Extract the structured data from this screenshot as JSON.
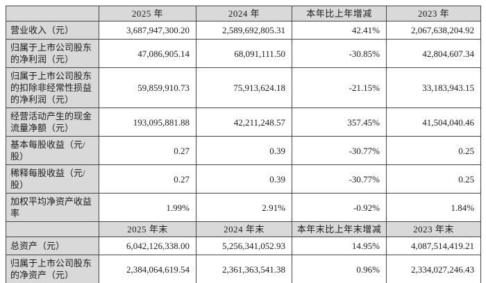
{
  "colors": {
    "header_bg": "#d9d9d9",
    "label_bg": "#d9d9d9",
    "border": "#454545",
    "text": "#1c1c1c",
    "cell_bg": "#ffffff"
  },
  "sections": [
    {
      "name": "annual-results",
      "headers": [
        "",
        "2025 年",
        "2024 年",
        "本年比上年增减",
        "2023 年"
      ],
      "rows": [
        {
          "label": "营业收入（元）",
          "values": [
            "3,687,947,300.20",
            "2,589,692,805.31",
            "42.41%",
            "2,067,638,204.92"
          ]
        },
        {
          "label": "归属于上市公司股东的净利润（元）",
          "values": [
            "47,086,905.14",
            "68,091,111.50",
            "-30.85%",
            "42,804,607.34"
          ]
        },
        {
          "label": "归属于上市公司股东的扣除非经常性损益的净利润（元）",
          "values": [
            "59,859,910.73",
            "75,913,624.18",
            "-21.15%",
            "33,183,943.15"
          ]
        },
        {
          "label": "经营活动产生的现金流量净额（元）",
          "values": [
            "193,095,881.88",
            "42,211,248.57",
            "357.45%",
            "41,504,040.46"
          ]
        },
        {
          "label": "基本每股收益（元/股）",
          "values": [
            "0.27",
            "0.39",
            "-30.77%",
            "0.25"
          ]
        },
        {
          "label": "稀释每股收益（元/股）",
          "values": [
            "0.27",
            "0.39",
            "-30.77%",
            "0.25"
          ]
        },
        {
          "label": "加权平均净资产收益率",
          "values": [
            "1.99%",
            "2.91%",
            "-0.92%",
            "1.84%"
          ]
        }
      ]
    },
    {
      "name": "period-end",
      "headers": [
        "",
        "2025 年末",
        "2024 年末",
        "本年末比上年末增减",
        "2023 年末"
      ],
      "rows": [
        {
          "label": "总资产（元）",
          "values": [
            "6,042,126,338.00",
            "5,256,341,052.93",
            "14.95%",
            "4,087,514,419.21"
          ]
        },
        {
          "label": "归属于上市公司股东的净资产（元）",
          "values": [
            "2,384,064,619.54",
            "2,361,363,541.38",
            "0.96%",
            "2,334,027,246.43"
          ]
        }
      ]
    }
  ]
}
